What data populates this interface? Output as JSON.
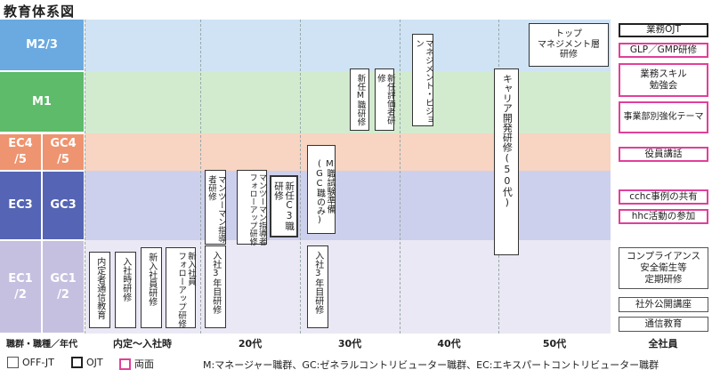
{
  "title": "教育体系図",
  "levels": {
    "m23": "M2/3",
    "m1": "M1",
    "ec4": "EC4\n/5",
    "gc4": "GC4\n/5",
    "ec3": "EC3",
    "gc3": "GC3",
    "ec12": "EC1\n/2",
    "gc12": "GC1\n/2"
  },
  "colors": {
    "m23_label": "#6aaae0",
    "m23_band": "#cfe3f5",
    "m1_label": "#5dbb6a",
    "m1_band": "#d2ebcf",
    "c4_label": "#ee9470",
    "c4_band": "#f8d4c2",
    "c3_label": "#5564b4",
    "c3_band": "#cdd0ec",
    "c12_label": "#c6c0e0",
    "c12_band": "#eae8f4",
    "both": "#e0409a"
  },
  "boxes": {
    "naitei_tsushin": "内定者通信教育",
    "nyusha_ji": "入社時研修",
    "shinnyu_shain": "新入社員研修",
    "shinnyu_follow": "新入社員\nフォローアップ研修",
    "nyusha3_20": "入社3年目研修",
    "manto_shidosha": "マンツーマン指導者研修",
    "manto_follow": "マンツーマン指導者\nフォローアップ研修",
    "shinnin_c3": "新任C3職研修",
    "m_shiken": "M職試験準備\n(GC職のみ)",
    "nyusha3_30": "入社3年目研修",
    "shinnin_m": "新任M職研修",
    "shinnin_hyoka": "新任評価者研修",
    "mgmt_vision": "マネジメント・ビジョン",
    "career": "キャリア開発研修(50代)",
    "top_mgmt": "トップ\nマネジメント層\n研修"
  },
  "right": {
    "gyomu_ojt": "業務OJT",
    "glp": "GLP／GMP研修",
    "skill": "業務スキル\n勉強会",
    "jigyobu": "事業部別強化テーマ",
    "yakuin": "役員講話",
    "cchc": "cchc事例の共有",
    "hhc": "hhc活動の参加",
    "compliance": "コンプライアンス\n安全衛生等\n定期研修",
    "shagai": "社外公開講座",
    "tsushin": "通信教育"
  },
  "axis": {
    "rank": "職群・職種／年代",
    "naitei": "内定〜入社時",
    "d20": "20代",
    "d30": "30代",
    "d40": "40代",
    "d50": "50代",
    "all": "全社員"
  },
  "legend": {
    "offjt": "OFF-JT",
    "ojt": "OJT",
    "both": "両面"
  },
  "note": "M:マネージャー職群、GC:ゼネラルコントリビューター職群、EC:エキスパートコントリビューター職群"
}
